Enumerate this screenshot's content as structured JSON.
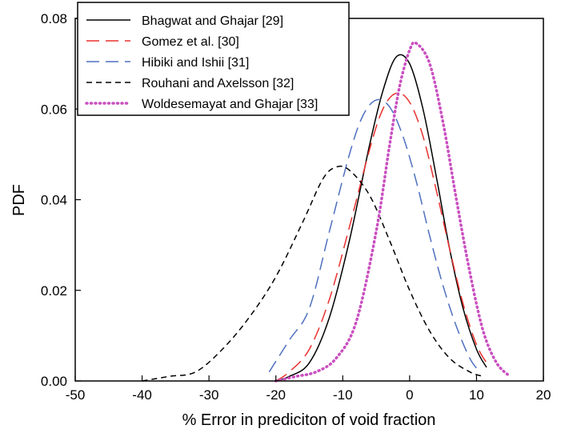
{
  "chart_data": {
    "type": "line",
    "title": "",
    "xlabel": "% Error in prediciton of void fraction",
    "ylabel": "PDF",
    "xlim": [
      -50,
      20
    ],
    "ylim": [
      0,
      0.08
    ],
    "x_ticks": [
      -50,
      -40,
      -30,
      -20,
      -10,
      0,
      10,
      20
    ],
    "y_ticks": [
      0.0,
      0.02,
      0.04,
      0.06,
      0.08
    ],
    "x_tick_labels": [
      "-50",
      "-40",
      "-30",
      "-20",
      "-10",
      "0",
      "10",
      "20"
    ],
    "y_tick_labels": [
      "0.00",
      "0.02",
      "0.04",
      "0.06",
      "0.08"
    ],
    "grid": false,
    "legend_position": "top-left",
    "series": [
      {
        "name": "Bhagwat and Ghajar [29]",
        "color": "#000000",
        "dash": "solid",
        "x": [
          -20,
          -18,
          -15,
          -12,
          -9,
          -6,
          -4,
          -2,
          0,
          2,
          4,
          6,
          8,
          10,
          11.5
        ],
        "y": [
          0.0,
          0.001,
          0.004,
          0.014,
          0.031,
          0.052,
          0.064,
          0.0715,
          0.07,
          0.06,
          0.045,
          0.029,
          0.016,
          0.007,
          0.003
        ]
      },
      {
        "name": "Gomez et al. [30]",
        "color": "#e8312f",
        "dash": "long-dash",
        "x": [
          -20,
          -18,
          -15,
          -12,
          -9,
          -6,
          -4,
          -2,
          0,
          2,
          4,
          6,
          8,
          10,
          11.5
        ],
        "y": [
          0.0,
          0.002,
          0.007,
          0.018,
          0.034,
          0.051,
          0.06,
          0.0635,
          0.0615,
          0.054,
          0.042,
          0.029,
          0.017,
          0.008,
          0.004
        ]
      },
      {
        "name": "Hibiki and Ishii [31]",
        "color": "#4f6fbf",
        "dash": "long-dash",
        "x": [
          -21,
          -18,
          -15,
          -12,
          -9,
          -7,
          -5,
          -3,
          -1,
          1,
          3,
          5,
          7,
          9,
          10.5
        ],
        "y": [
          0.002,
          0.009,
          0.016,
          0.033,
          0.05,
          0.0585,
          0.062,
          0.0605,
          0.054,
          0.044,
          0.032,
          0.021,
          0.012,
          0.005,
          0.002
        ]
      },
      {
        "name": "Rouhani and Axelsson [32]",
        "color": "#000000",
        "dash": "dash",
        "x": [
          -40,
          -36,
          -32,
          -28,
          -24,
          -20,
          -16,
          -13,
          -11,
          -9,
          -6,
          -3,
          0,
          3,
          6,
          9,
          11
        ],
        "y": [
          0.0,
          0.001,
          0.002,
          0.007,
          0.014,
          0.023,
          0.035,
          0.0445,
          0.0472,
          0.0465,
          0.041,
          0.031,
          0.02,
          0.011,
          0.005,
          0.002,
          0.001
        ]
      },
      {
        "name": "Woldesemayat and Ghajar [33]",
        "color": "#c94fc0",
        "dash": "dotted",
        "x": [
          -20,
          -17,
          -14,
          -11,
          -8,
          -5,
          -3,
          -1.5,
          0,
          1,
          3,
          5,
          7,
          9,
          11,
          13,
          15
        ],
        "y": [
          0.0,
          0.001,
          0.002,
          0.005,
          0.013,
          0.033,
          0.052,
          0.065,
          0.073,
          0.0745,
          0.07,
          0.057,
          0.04,
          0.024,
          0.011,
          0.004,
          0.001
        ]
      }
    ]
  }
}
